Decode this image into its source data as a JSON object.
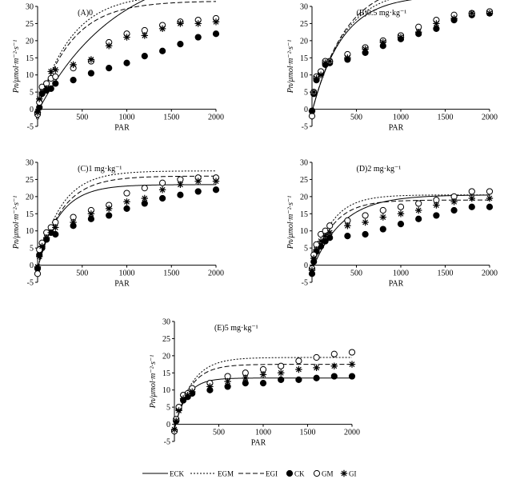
{
  "chart_data": {
    "type": "scatter",
    "shared": {
      "xlabel": "PAR",
      "ylabel": "Pn/μmol·m⁻²·s⁻¹",
      "xlim": [
        0,
        2000
      ],
      "ylim": [
        -5,
        30
      ],
      "xticks": [
        0,
        500,
        1000,
        1500,
        2000
      ],
      "yticks": [
        -5,
        0,
        5,
        10,
        15,
        20,
        25,
        30
      ],
      "x": [
        0,
        20,
        50,
        100,
        150,
        200,
        400,
        600,
        800,
        1000,
        1200,
        1400,
        1600,
        1800,
        2000
      ]
    },
    "legend": {
      "placement": "bottom",
      "entries": [
        {
          "label": "ECK",
          "kind": "line",
          "dash": "solid"
        },
        {
          "label": "EGM",
          "kind": "line",
          "dash": "dotted"
        },
        {
          "label": "EGI",
          "kind": "line",
          "dash": "dashed"
        },
        {
          "label": "CK",
          "kind": "marker",
          "marker": "filled-circle"
        },
        {
          "label": "GM",
          "kind": "marker",
          "marker": "open-circle"
        },
        {
          "label": "GI",
          "kind": "marker",
          "marker": "asterisk"
        }
      ]
    },
    "panels": [
      {
        "title": "(A)0",
        "series": [
          {
            "name": "CK",
            "x": [
              0,
              20,
              50,
              100,
              150,
              200,
              400,
              600,
              800,
              1000,
              1200,
              1400,
              1600,
              1800,
              2000
            ],
            "values": [
              -1,
              0.5,
              4.5,
              5.5,
              6,
              7.5,
              8.5,
              10.5,
              12,
              13.5,
              15.5,
              17,
              19,
              21,
              22
            ]
          },
          {
            "name": "GM",
            "x": [
              0,
              20,
              50,
              100,
              150,
              200,
              400,
              600,
              800,
              1000,
              1200,
              1400,
              1600,
              1800,
              2000
            ],
            "values": [
              -1.5,
              2,
              6.5,
              7.5,
              9,
              9.5,
              12,
              14,
              19.5,
              22,
              23,
              24.5,
              25.5,
              26,
              26.5
            ]
          },
          {
            "name": "GI",
            "x": [
              0,
              20,
              50,
              100,
              150,
              200,
              400,
              600,
              800,
              1000,
              1200,
              1400,
              1600,
              1800,
              2000
            ],
            "values": [
              -1,
              3,
              5,
              6,
              11,
              11.5,
              13,
              14.5,
              18.5,
              21,
              21.5,
              23.5,
              25,
              25,
              25.5
            ]
          }
        ],
        "fits": [
          {
            "name": "ECK",
            "pmax": 44,
            "a": 0.05,
            "rd": 0.8
          },
          {
            "name": "EGM",
            "pmax": 34,
            "a": 0.09,
            "rd": 0.4
          },
          {
            "name": "EGI",
            "pmax": 32,
            "a": 0.085,
            "rd": 0.4
          }
        ]
      },
      {
        "title": "(B)0.5 mg·kg⁻¹",
        "series": [
          {
            "name": "CK",
            "x": [
              0,
              20,
              50,
              100,
              150,
              200,
              400,
              600,
              800,
              1000,
              1200,
              1400,
              1600,
              1800,
              2000
            ],
            "values": [
              -0.5,
              4.5,
              8.5,
              10.5,
              13,
              13.5,
              14.5,
              16.5,
              18.5,
              20.5,
              22,
              23.5,
              26,
              27.5,
              28
            ]
          },
          {
            "name": "GM",
            "x": [
              0,
              20,
              50,
              100,
              150,
              200,
              400,
              600,
              800,
              1000,
              1200,
              1400,
              1600,
              1800,
              2000
            ],
            "values": [
              -2,
              5,
              9.5,
              11,
              14,
              14,
              16,
              18,
              20,
              21.5,
              24,
              26,
              27.5,
              28,
              28.5
            ]
          },
          {
            "name": "GI",
            "x": [
              0,
              20,
              50,
              100,
              150,
              200,
              400,
              600,
              800,
              1000,
              1200,
              1400,
              1600,
              1800,
              2000
            ],
            "values": [
              -0.5,
              5,
              9,
              10,
              13.5,
              14,
              15,
              17.5,
              19.5,
              21,
              22.5,
              25,
              26.5,
              28,
              28
            ]
          }
        ],
        "fits": [
          {
            "name": "ECK",
            "pmax": 34,
            "a": 0.1,
            "rd": 0.8
          },
          {
            "name": "EGM",
            "pmax": 36,
            "a": 0.1,
            "rd": 0.8
          },
          {
            "name": "EGI",
            "pmax": 38,
            "a": 0.1,
            "rd": 0.8
          }
        ]
      },
      {
        "title": "(C)1 mg·kg⁻¹",
        "series": [
          {
            "name": "CK",
            "x": [
              0,
              20,
              50,
              100,
              150,
              200,
              400,
              600,
              800,
              1000,
              1200,
              1400,
              1600,
              1800,
              2000
            ],
            "values": [
              -1,
              3,
              5,
              7.5,
              9.5,
              9,
              11.5,
              13.5,
              14.5,
              16.5,
              18,
              19.5,
              20.5,
              21.5,
              22
            ]
          },
          {
            "name": "GM",
            "x": [
              0,
              20,
              50,
              100,
              150,
              200,
              400,
              600,
              800,
              1000,
              1200,
              1400,
              1600,
              1800,
              2000
            ],
            "values": [
              -2.5,
              4.5,
              6.5,
              9.5,
              11,
              12.5,
              14,
              16,
              17.5,
              21,
              22.5,
              24,
              25,
              25.5,
              25.5
            ]
          },
          {
            "name": "GI",
            "x": [
              0,
              20,
              50,
              100,
              150,
              200,
              400,
              600,
              800,
              1000,
              1200,
              1400,
              1600,
              1800,
              2000
            ],
            "values": [
              -0.5,
              2.5,
              5.5,
              8,
              9.5,
              11,
              12.5,
              15,
              16.5,
              18.5,
              19.5,
              22,
              23.5,
              24.5,
              24.5
            ]
          }
        ],
        "fits": [
          {
            "name": "ECK",
            "pmax": 24.5,
            "a": 0.1,
            "rd": 1
          },
          {
            "name": "EGM",
            "pmax": 28.5,
            "a": 0.11,
            "rd": 1
          },
          {
            "name": "EGI",
            "pmax": 27,
            "a": 0.1,
            "rd": 1
          }
        ]
      },
      {
        "title": "(D)2 mg·kg⁻¹",
        "series": [
          {
            "name": "CK",
            "x": [
              0,
              20,
              50,
              100,
              150,
              200,
              400,
              600,
              800,
              1000,
              1200,
              1400,
              1600,
              1800,
              2000
            ],
            "values": [
              -2.5,
              1,
              4,
              5.5,
              7,
              8,
              8.5,
              9,
              10.5,
              12,
              13.5,
              14.5,
              16,
              17,
              17
            ]
          },
          {
            "name": "GM",
            "x": [
              0,
              20,
              50,
              100,
              150,
              200,
              400,
              600,
              800,
              1000,
              1200,
              1400,
              1600,
              1800,
              2000
            ],
            "values": [
              -1,
              3,
              6,
              9,
              10,
              11.5,
              13,
              14.5,
              16,
              17,
              18,
              19,
              20,
              21.5,
              21.5
            ]
          },
          {
            "name": "GI",
            "x": [
              0,
              20,
              50,
              100,
              150,
              200,
              400,
              600,
              800,
              1000,
              1200,
              1400,
              1600,
              1800,
              2000
            ],
            "values": [
              -1.5,
              2,
              4.5,
              7,
              8.5,
              9.5,
              11.5,
              12.5,
              14,
              15,
              16,
              17.5,
              18.5,
              19.5,
              19.5
            ]
          }
        ],
        "fits": [
          {
            "name": "ECK",
            "pmax": 22,
            "a": 0.065,
            "rd": 1.5
          },
          {
            "name": "EGM",
            "pmax": 22,
            "a": 0.1,
            "rd": 1.5
          },
          {
            "name": "EGI",
            "pmax": 20.5,
            "a": 0.09,
            "rd": 1.5
          }
        ]
      },
      {
        "title": "(E)5 mg·kg⁻¹",
        "series": [
          {
            "name": "CK",
            "x": [
              0,
              20,
              50,
              100,
              150,
              200,
              400,
              600,
              800,
              1000,
              1200,
              1400,
              1600,
              1800,
              2000
            ],
            "values": [
              -2,
              1,
              4.5,
              7,
              8,
              9,
              10,
              11,
              12,
              12,
              13,
              13,
              13.5,
              14,
              14
            ]
          },
          {
            "name": "GM",
            "x": [
              0,
              20,
              50,
              100,
              150,
              200,
              400,
              600,
              800,
              1000,
              1200,
              1400,
              1600,
              1800,
              2000
            ],
            "values": [
              -2,
              1.5,
              5,
              8.5,
              9,
              10.5,
              12,
              14,
              15,
              16,
              17,
              18.5,
              19.5,
              20.5,
              21
            ]
          },
          {
            "name": "GI",
            "x": [
              0,
              20,
              50,
              100,
              150,
              200,
              400,
              600,
              800,
              1000,
              1200,
              1400,
              1600,
              1800,
              2000
            ],
            "values": [
              -1.5,
              1,
              4,
              7.5,
              8.5,
              9.5,
              11,
              12.5,
              13.5,
              14.5,
              15,
              16,
              16.5,
              17,
              17.5
            ]
          }
        ],
        "fits": [
          {
            "name": "ECK",
            "pmax": 15,
            "a": 0.11,
            "rd": 1.5
          },
          {
            "name": "EGM",
            "pmax": 21,
            "a": 0.11,
            "rd": 1.5
          },
          {
            "name": "EGI",
            "pmax": 19,
            "a": 0.11,
            "rd": 1.5
          }
        ]
      }
    ]
  }
}
